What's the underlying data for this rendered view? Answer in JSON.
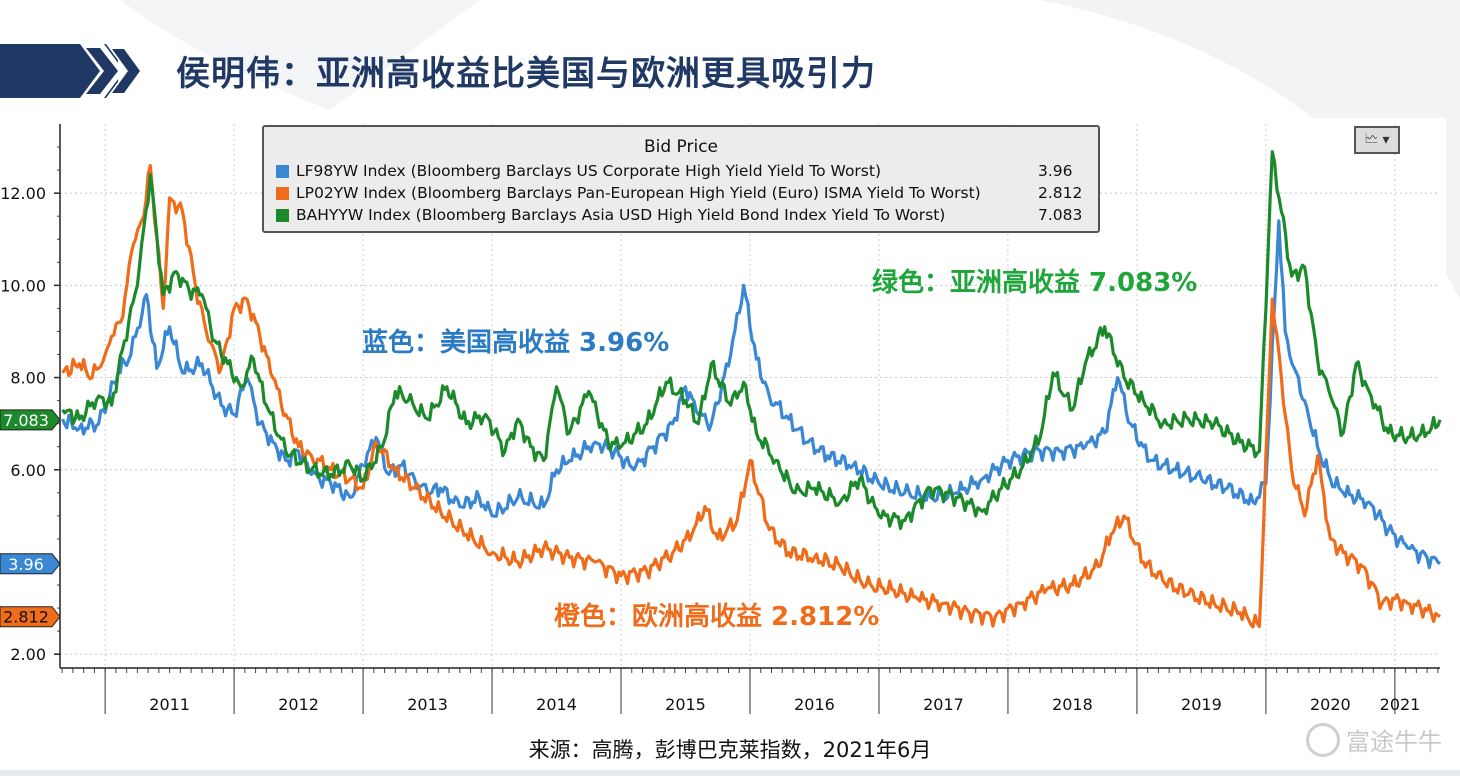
{
  "page": {
    "title": "侯明伟：亚洲高收益比美国与欧洲更具吸引力",
    "source": "来源：高腾，彭博巴克莱指数，2021年6月",
    "watermark": "富途牛牛"
  },
  "colors": {
    "us": "#3a87d4",
    "eu": "#ef6c1a",
    "asia": "#1c8a2a",
    "title": "#1f3864"
  },
  "annotations": {
    "asia": "绿色：亚洲高收益 7.083%",
    "us": "蓝色：美国高收益 3.96%",
    "eu": "橙色：欧洲高收益 2.812%"
  },
  "chart_data": {
    "type": "line",
    "legend_title": "Bid Price",
    "legend_position": "top-center",
    "grid": true,
    "xlim": [
      2010.65,
      2021.35
    ],
    "ylim": [
      1.7,
      13.5
    ],
    "y_ticks": [
      "12.00",
      "10.00",
      "8.00",
      "6.00",
      "2.00"
    ],
    "x_ticks": [
      "2011",
      "2012",
      "2013",
      "2014",
      "2015",
      "2016",
      "2017",
      "2018",
      "2019",
      "2020",
      "2021"
    ],
    "series": [
      {
        "name": "LF98YW Index (Bloomberg Barclays US Corporate High Yield Yield To Worst)",
        "last_value": "3.96",
        "color": "#3a87d4",
        "x": [
          2010.67,
          2010.8,
          2010.95,
          2011.1,
          2011.2,
          2011.32,
          2011.4,
          2011.5,
          2011.6,
          2011.75,
          2011.9,
          2012.0,
          2012.1,
          2012.2,
          2012.3,
          2012.4,
          2012.5,
          2012.6,
          2012.75,
          2012.9,
          2013.0,
          2013.1,
          2013.2,
          2013.3,
          2013.4,
          2013.5,
          2013.6,
          2013.75,
          2013.9,
          2014.0,
          2014.2,
          2014.4,
          2014.5,
          2014.6,
          2014.8,
          2014.95,
          2015.1,
          2015.25,
          2015.4,
          2015.5,
          2015.6,
          2015.7,
          2015.85,
          2015.95,
          2016.05,
          2016.15,
          2016.3,
          2016.45,
          2016.6,
          2016.8,
          2017.0,
          2017.2,
          2017.4,
          2017.6,
          2017.8,
          2018.0,
          2018.2,
          2018.4,
          2018.6,
          2018.75,
          2018.85,
          2018.95,
          2019.1,
          2019.3,
          2019.5,
          2019.7,
          2019.9,
          2020.0,
          2020.1,
          2020.15,
          2020.22,
          2020.3,
          2020.4,
          2020.5,
          2020.6,
          2020.8,
          2020.95,
          2021.1,
          2021.25,
          2021.35
        ],
        "y": [
          7.1,
          6.9,
          7.0,
          8.1,
          8.5,
          9.8,
          8.2,
          9.1,
          8.1,
          8.3,
          7.4,
          7.2,
          8.0,
          7.0,
          6.6,
          6.2,
          6.4,
          5.9,
          5.7,
          5.4,
          6.1,
          6.7,
          5.9,
          6.1,
          5.8,
          5.5,
          5.6,
          5.2,
          5.4,
          5.0,
          5.4,
          5.2,
          6.0,
          6.2,
          6.6,
          6.4,
          6.0,
          6.5,
          7.0,
          7.8,
          7.2,
          7.0,
          8.5,
          10.0,
          8.4,
          7.6,
          7.1,
          6.6,
          6.3,
          6.1,
          5.7,
          5.5,
          5.4,
          5.5,
          5.8,
          6.2,
          6.4,
          6.4,
          6.5,
          6.8,
          8.0,
          7.0,
          6.2,
          6.0,
          5.8,
          5.6,
          5.3,
          5.7,
          11.4,
          9.0,
          8.2,
          7.5,
          6.5,
          5.8,
          5.5,
          5.3,
          4.7,
          4.3,
          4.1,
          3.96
        ]
      },
      {
        "name": "LP02YW Index (Bloomberg Barclays Pan-European High Yield (Euro) ISMA Yield To Worst)",
        "last_value": "2.812",
        "color": "#ef6c1a",
        "x": [
          2010.67,
          2010.8,
          2010.9,
          2011.0,
          2011.05,
          2011.12,
          2011.22,
          2011.3,
          2011.35,
          2011.45,
          2011.5,
          2011.6,
          2011.7,
          2011.8,
          2011.9,
          2012.0,
          2012.1,
          2012.2,
          2012.3,
          2012.4,
          2012.5,
          2012.6,
          2012.75,
          2012.9,
          2013.0,
          2013.1,
          2013.25,
          2013.4,
          2013.6,
          2013.8,
          2014.0,
          2014.2,
          2014.4,
          2014.6,
          2014.8,
          2015.0,
          2015.2,
          2015.4,
          2015.55,
          2015.65,
          2015.75,
          2015.9,
          2016.0,
          2016.15,
          2016.3,
          2016.5,
          2016.7,
          2016.9,
          2017.1,
          2017.3,
          2017.5,
          2017.7,
          2017.9,
          2018.1,
          2018.3,
          2018.5,
          2018.7,
          2018.8,
          2018.9,
          2019.05,
          2019.2,
          2019.4,
          2019.6,
          2019.8,
          2019.95,
          2020.05,
          2020.12,
          2020.2,
          2020.3,
          2020.4,
          2020.5,
          2020.6,
          2020.75,
          2020.9,
          2021.0,
          2021.1,
          2021.2,
          2021.35
        ],
        "y": [
          8.1,
          8.3,
          8.0,
          8.5,
          8.9,
          9.2,
          10.9,
          11.5,
          12.6,
          9.5,
          11.9,
          11.6,
          10.0,
          8.8,
          8.2,
          9.5,
          9.7,
          8.9,
          8.0,
          7.2,
          6.5,
          6.3,
          6.0,
          5.8,
          5.6,
          6.6,
          6.0,
          5.6,
          5.1,
          4.6,
          4.2,
          4.0,
          4.3,
          4.1,
          4.0,
          3.7,
          3.8,
          4.2,
          4.6,
          5.2,
          4.5,
          4.9,
          6.2,
          4.7,
          4.2,
          4.1,
          3.9,
          3.5,
          3.4,
          3.2,
          3.1,
          2.9,
          2.8,
          3.1,
          3.4,
          3.5,
          3.9,
          4.6,
          5.0,
          4.0,
          3.6,
          3.3,
          3.1,
          2.9,
          2.6,
          9.7,
          8.0,
          6.0,
          5.0,
          6.3,
          4.5,
          4.2,
          3.9,
          3.1,
          3.2,
          3.1,
          3.0,
          2.812
        ]
      },
      {
        "name": "BAHYYW Index (Bloomberg Barclays Asia USD High Yield Bond Index Yield To Worst)",
        "last_value": "7.083",
        "color": "#1c8a2a",
        "x": [
          2010.67,
          2010.8,
          2010.95,
          2011.05,
          2011.15,
          2011.25,
          2011.35,
          2011.45,
          2011.55,
          2011.65,
          2011.75,
          2011.85,
          2011.95,
          2012.05,
          2012.15,
          2012.25,
          2012.4,
          2012.6,
          2012.75,
          2012.9,
          2013.0,
          2013.15,
          2013.25,
          2013.35,
          2013.5,
          2013.65,
          2013.8,
          2013.95,
          2014.1,
          2014.2,
          2014.3,
          2014.4,
          2014.5,
          2014.6,
          2014.75,
          2014.9,
          2015.0,
          2015.2,
          2015.35,
          2015.5,
          2015.6,
          2015.7,
          2015.85,
          2015.95,
          2016.05,
          2016.2,
          2016.35,
          2016.5,
          2016.7,
          2016.85,
          2017.0,
          2017.2,
          2017.4,
          2017.6,
          2017.8,
          2017.95,
          2018.1,
          2018.25,
          2018.35,
          2018.5,
          2018.6,
          2018.75,
          2018.9,
          2019.05,
          2019.2,
          2019.4,
          2019.6,
          2019.8,
          2019.95,
          2020.05,
          2020.12,
          2020.2,
          2020.3,
          2020.4,
          2020.5,
          2020.6,
          2020.7,
          2020.8,
          2020.95,
          2021.1,
          2021.25,
          2021.35
        ],
        "y": [
          7.3,
          7.1,
          7.6,
          7.4,
          8.8,
          10.0,
          12.4,
          9.8,
          10.3,
          9.9,
          9.8,
          8.8,
          8.3,
          7.8,
          8.4,
          7.4,
          6.4,
          6.0,
          5.9,
          6.1,
          5.8,
          6.5,
          7.7,
          7.5,
          7.1,
          7.8,
          7.0,
          7.2,
          6.4,
          7.1,
          6.5,
          6.2,
          7.8,
          6.8,
          7.7,
          6.6,
          6.5,
          7.0,
          7.9,
          7.5,
          7.0,
          8.3,
          7.4,
          7.9,
          6.8,
          6.2,
          5.5,
          5.6,
          5.3,
          5.8,
          5.0,
          4.9,
          5.6,
          5.4,
          5.1,
          5.6,
          6.0,
          6.7,
          8.1,
          7.3,
          8.3,
          9.1,
          8.0,
          7.5,
          7.0,
          7.1,
          7.0,
          6.6,
          6.4,
          12.9,
          11.6,
          10.2,
          10.4,
          8.4,
          7.6,
          6.8,
          8.3,
          7.7,
          6.8,
          6.7,
          6.8,
          7.083
        ]
      }
    ]
  }
}
